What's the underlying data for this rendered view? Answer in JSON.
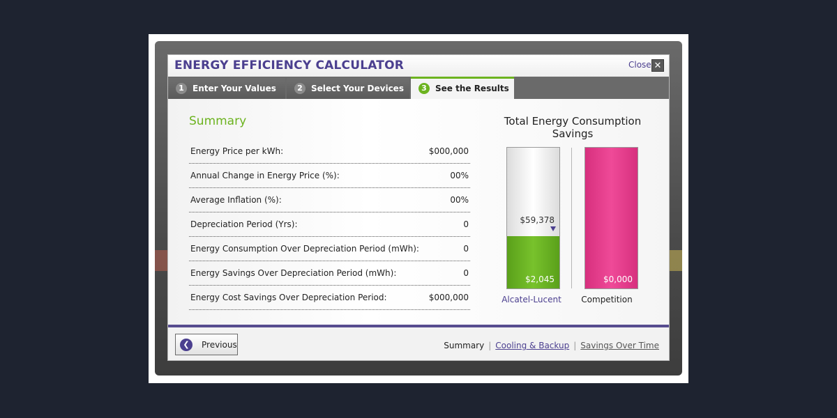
{
  "header": {
    "title": "ENERGY EFFICIENCY CALCULATOR",
    "close_label": "Close",
    "close_icon": "close-icon"
  },
  "tabs": [
    {
      "number": "1",
      "label": "Enter Your Values",
      "active": false
    },
    {
      "number": "2",
      "label": "Select Your Devices",
      "active": false
    },
    {
      "number": "3",
      "label": "See the Results",
      "active": true
    }
  ],
  "summary": {
    "title": "Summary",
    "rows": [
      {
        "label": "Energy Price per kWh:",
        "value": "$000,000"
      },
      {
        "label": "Annual Change in Energy Price (%):",
        "value": "00%"
      },
      {
        "label": "Average Inflation (%):",
        "value": "00%"
      },
      {
        "label": "Depreciation Period (Yrs):",
        "value": "0"
      },
      {
        "label": "Energy Consumption Over Depreciation Period (mWh):",
        "value": "0"
      },
      {
        "label": "Energy Savings Over Depreciation Period (mWh):",
        "value": "0"
      },
      {
        "label": "Energy Cost Savings Over Depreciation Period:",
        "value": "$000,000"
      }
    ]
  },
  "chart": {
    "title_line1": "Total Energy Consumption",
    "title_line2": "Savings",
    "bars": [
      {
        "name": "Alcatel-Lucent",
        "value_label": "$2,045",
        "fill_fraction": 0.37,
        "marker_label": "$59,378",
        "marker_fraction": 0.4,
        "color": "#6cb31f",
        "label_color": "#4b3f8f"
      },
      {
        "name": "Competition",
        "value_label": "$0,000",
        "fill_fraction": 1.0,
        "color": "#e33d8c",
        "label_color": "#222222"
      }
    ]
  },
  "footer": {
    "previous_label": "Previous",
    "previous_icon": "chevron-left-icon",
    "links": [
      {
        "label": "Summary",
        "current": true
      },
      {
        "label": "Cooling & Backup",
        "current": false
      },
      {
        "label": "Savings Over Time",
        "current": false
      }
    ]
  },
  "colors": {
    "accent_purple": "#4b3f8f",
    "accent_green": "#6cb31f",
    "accent_pink": "#e33d8c"
  }
}
